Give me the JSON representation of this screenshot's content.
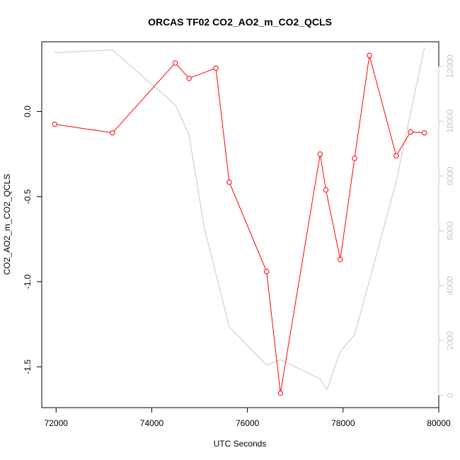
{
  "chart_data": {
    "type": "line",
    "title": "ORCAS TF02 CO2_AO2_m_CO2_QCLS",
    "xlabel": "UTC Seconds",
    "ylabel": "CO2_AO2_m_CO2_QCLS",
    "xlim": [
      71700,
      80000
    ],
    "ylim": [
      -1.74,
      0.41
    ],
    "y2lim": [
      -450,
      12900
    ],
    "x_ticks": [
      72000,
      74000,
      76000,
      78000,
      80000
    ],
    "x_tick_labels": [
      "72000",
      "74000",
      "76000",
      "78000",
      "80000"
    ],
    "y_ticks": [
      -1.5,
      -1.0,
      -0.5,
      0.0
    ],
    "y_tick_labels": [
      "-1.5",
      "-1.0",
      "-0.5",
      "0.0"
    ],
    "y2_ticks": [
      0,
      2000,
      4000,
      6000,
      8000,
      10000,
      12000
    ],
    "y2_tick_labels": [
      "0",
      "2000",
      "4000",
      "6000",
      "8000",
      "10000",
      "12000"
    ],
    "series": [
      {
        "color": "#ff0000",
        "axis": "left",
        "markers": true,
        "x": [
          71970,
          73180,
          74490,
          74780,
          75340,
          75620,
          76400,
          76690,
          77520,
          77640,
          77940,
          78240,
          78550,
          79110,
          79410,
          79700
        ],
        "y": [
          -0.075,
          -0.125,
          0.285,
          0.195,
          0.255,
          -0.415,
          -0.94,
          -1.655,
          -0.25,
          -0.46,
          -0.87,
          -0.275,
          0.33,
          -0.26,
          -0.12,
          -0.125
        ]
      },
      {
        "color": "#c8c8c8",
        "axis": "right",
        "markers": false,
        "x": [
          71970,
          73180,
          74490,
          74780,
          75100,
          75620,
          76400,
          76690,
          77520,
          77660,
          77940,
          78240,
          78600,
          79110,
          79700
        ],
        "y": [
          12500,
          12600,
          10600,
          9500,
          6100,
          2500,
          1100,
          1300,
          600,
          200,
          1600,
          2200,
          4500,
          7800,
          12700
        ]
      }
    ]
  }
}
